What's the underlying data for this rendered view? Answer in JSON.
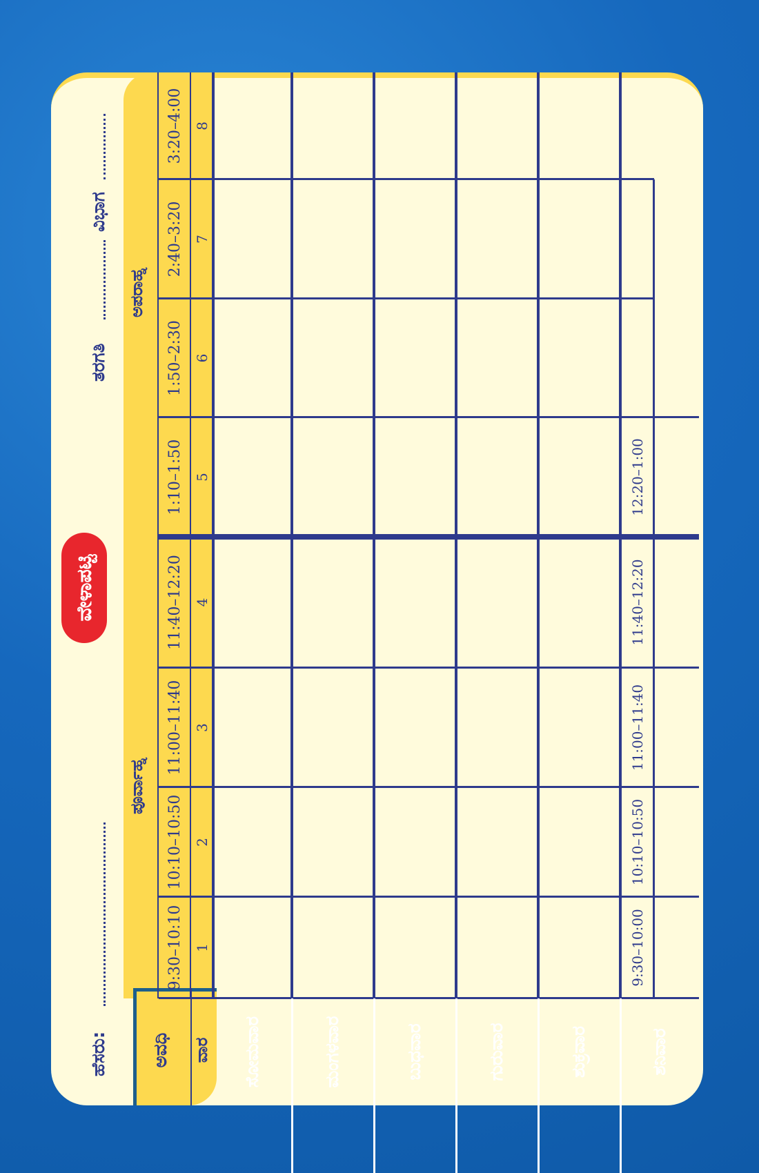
{
  "title": "ವೇಳಾಪಟ್ಟಿ",
  "header": {
    "name_label": "ಹೆಸರು:",
    "class_label": "ತರಗತಿ",
    "section_label": "ವಿಭಾಗ"
  },
  "sessions": {
    "forenoon": "ಪೂರ್ವಾಹ್ನ",
    "afternoon": "ಅಪರಾಹ್ನ"
  },
  "corner": {
    "period": "ಅವಧಿ",
    "day": "ವಾರ"
  },
  "periods": [
    {
      "time": "9:30–10:10",
      "number": "1"
    },
    {
      "time": "10:10–10:50",
      "number": "2"
    },
    {
      "time": "11:00–11:40",
      "number": "3"
    },
    {
      "time": "11:40–12:20",
      "number": "4"
    },
    {
      "time": "1:10–1:50",
      "number": "5"
    },
    {
      "time": "1:50–2:30",
      "number": "6"
    },
    {
      "time": "2:40–3:20",
      "number": "7"
    },
    {
      "time": "3:20–4:00",
      "number": "8"
    }
  ],
  "days": [
    "ಸೋಮವಾರ",
    "ಮಂಗಳವಾರ",
    "ಬುಧವಾರ",
    "ಗುರುವಾರ",
    "ಶುಕ್ರವಾರ",
    "ಶನಿವಾರ"
  ],
  "saturday_times": [
    "9:30–10:00",
    "10:10–10:50",
    "11:00–11:40",
    "11:40–12:20",
    "12:20–1:00"
  ],
  "colors": {
    "background": "#1668bd",
    "card": "#fffbdc",
    "header": "#fdd94f",
    "grid": "#2e3a8c",
    "title_pill": "#e8262d"
  }
}
